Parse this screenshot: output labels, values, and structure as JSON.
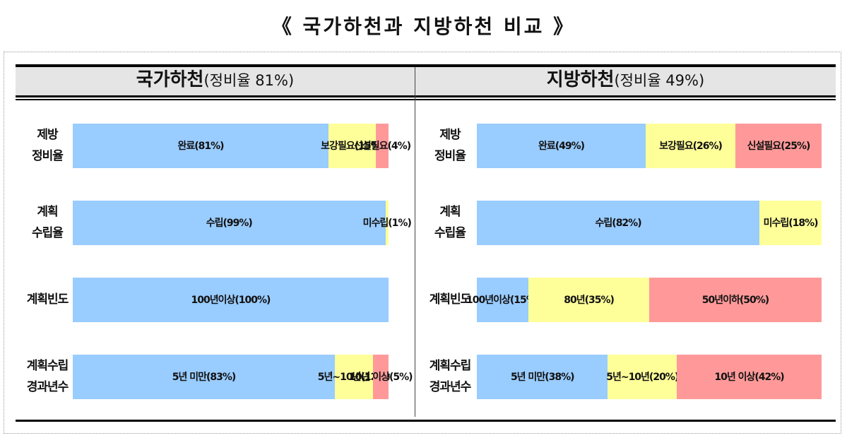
{
  "title": "《 국가하천과 지방하천 비교 》",
  "colors": {
    "blue": "#99ccff",
    "yellow": "#ffff99",
    "red": "#ff9999"
  },
  "panels": {
    "national": {
      "header_main": "국가하천",
      "header_sub": "(정비율 81%)",
      "rows": [
        {
          "label_lines": [
            "제방",
            "정비율"
          ],
          "segments": [
            {
              "label": "완료(81%)",
              "value": 81,
              "color": "blue"
            },
            {
              "label": "보강\n필요(15%)",
              "value": 15,
              "color": "yellow"
            },
            {
              "label": "신설\n필요(4%)",
              "value": 4,
              "color": "red"
            }
          ]
        },
        {
          "label_lines": [
            "계획",
            "수립율"
          ],
          "segments": [
            {
              "label": "수립(99%)",
              "value": 99,
              "color": "blue"
            },
            {
              "label": "미수립(1%)",
              "value": 1,
              "color": "yellow"
            }
          ]
        },
        {
          "label_lines": [
            "계획빈도"
          ],
          "segments": [
            {
              "label": "100년이상(100%)",
              "value": 100,
              "color": "blue"
            }
          ]
        },
        {
          "label_lines": [
            "계획수립",
            "경과년수"
          ],
          "segments": [
            {
              "label": "5년 미만(83%)",
              "value": 83,
              "color": "blue"
            },
            {
              "label": "5년~10년\n(12%)",
              "value": 12,
              "color": "yellow"
            },
            {
              "label": "10년 이상\n(5%)",
              "value": 5,
              "color": "red"
            }
          ]
        }
      ]
    },
    "local": {
      "header_main": "지방하천",
      "header_sub": "(정비율 49%)",
      "rows": [
        {
          "label_lines": [
            "제방",
            "정비율"
          ],
          "segments": [
            {
              "label": "완료(49%)",
              "value": 49,
              "color": "blue"
            },
            {
              "label": "보강필요(26%)",
              "value": 26,
              "color": "yellow"
            },
            {
              "label": "신설필요(25%)",
              "value": 25,
              "color": "red"
            }
          ]
        },
        {
          "label_lines": [
            "계획",
            "수립율"
          ],
          "segments": [
            {
              "label": "수립(82%)",
              "value": 82,
              "color": "blue"
            },
            {
              "label": "미수립(18%)",
              "value": 18,
              "color": "yellow"
            }
          ]
        },
        {
          "label_lines": [
            "계획빈도"
          ],
          "segments": [
            {
              "label": "100년이상\n(15%)",
              "value": 15,
              "color": "blue"
            },
            {
              "label": "80년(35%)",
              "value": 35,
              "color": "yellow"
            },
            {
              "label": "50년이하(50%)",
              "value": 50,
              "color": "red"
            }
          ]
        },
        {
          "label_lines": [
            "계획수립",
            "경과년수"
          ],
          "segments": [
            {
              "label": "5년 미만(38%)",
              "value": 38,
              "color": "blue"
            },
            {
              "label": "5년~10년(20%)",
              "value": 20,
              "color": "yellow"
            },
            {
              "label": "10년 이상(42%)",
              "value": 42,
              "color": "red"
            }
          ]
        }
      ]
    }
  },
  "chart_data": [
    {
      "type": "bar",
      "orientation": "horizontal-stacked-100",
      "title": "국가하천(정비율 81%)",
      "categories": [
        "제방 정비율",
        "계획 수립율",
        "계획빈도",
        "계획수립 경과년수"
      ],
      "series_per_category": [
        [
          {
            "name": "완료",
            "value": 81
          },
          {
            "name": "보강필요",
            "value": 15
          },
          {
            "name": "신설필요",
            "value": 4
          }
        ],
        [
          {
            "name": "수립",
            "value": 99
          },
          {
            "name": "미수립",
            "value": 1
          }
        ],
        [
          {
            "name": "100년이상",
            "value": 100
          }
        ],
        [
          {
            "name": "5년 미만",
            "value": 83
          },
          {
            "name": "5년~10년",
            "value": 12
          },
          {
            "name": "10년 이상",
            "value": 5
          }
        ]
      ],
      "xlim": [
        0,
        100
      ]
    },
    {
      "type": "bar",
      "orientation": "horizontal-stacked-100",
      "title": "지방하천(정비율 49%)",
      "categories": [
        "제방 정비율",
        "계획 수립율",
        "계획빈도",
        "계획수립 경과년수"
      ],
      "series_per_category": [
        [
          {
            "name": "완료",
            "value": 49
          },
          {
            "name": "보강필요",
            "value": 26
          },
          {
            "name": "신설필요",
            "value": 25
          }
        ],
        [
          {
            "name": "수립",
            "value": 82
          },
          {
            "name": "미수립",
            "value": 18
          }
        ],
        [
          {
            "name": "100년이상",
            "value": 15
          },
          {
            "name": "80년",
            "value": 35
          },
          {
            "name": "50년이하",
            "value": 50
          }
        ],
        [
          {
            "name": "5년 미만",
            "value": 38
          },
          {
            "name": "5년~10년",
            "value": 20
          },
          {
            "name": "10년 이상",
            "value": 42
          }
        ]
      ],
      "xlim": [
        0,
        100
      ]
    }
  ]
}
